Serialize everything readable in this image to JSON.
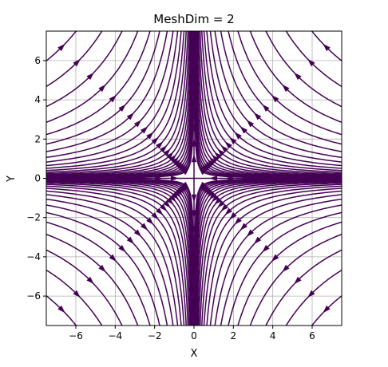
{
  "chart_data": {
    "type": "streamplot",
    "title": "MeshDim = 2",
    "xlabel": "X",
    "ylabel": "Y",
    "xlim": [
      -7.5,
      7.5
    ],
    "ylim": [
      -7.5,
      7.5
    ],
    "xticks": [
      -6,
      -4,
      -2,
      0,
      2,
      4,
      6
    ],
    "yticks": [
      -6,
      -4,
      -2,
      0,
      2,
      4,
      6
    ],
    "xtick_labels": [
      "−6",
      "−4",
      "−2",
      "0",
      "2",
      "4",
      "6"
    ],
    "ytick_labels": [
      "−6",
      "−4",
      "−2",
      "0",
      "2",
      "4",
      "6"
    ],
    "grid": true,
    "field": {
      "u": "-x",
      "v": "y",
      "description": "saddle point at origin"
    },
    "colors": {
      "stream": "#440154",
      "grid": "#b0b0b0"
    }
  }
}
